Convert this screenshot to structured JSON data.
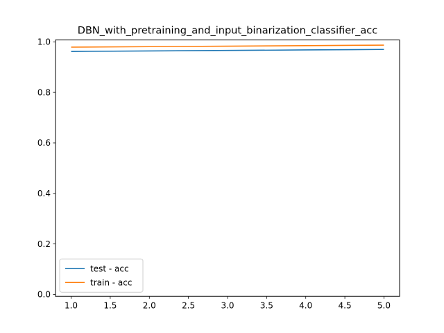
{
  "chart_data": {
    "type": "line",
    "title": "DBN_with_pretraining_and_input_binarization_classifier_acc",
    "xlabel": "",
    "ylabel": "",
    "xlim": [
      0.8,
      5.2
    ],
    "ylim": [
      -0.0075,
      1.0075
    ],
    "xticks": [
      1.0,
      1.5,
      2.0,
      2.5,
      3.0,
      3.5,
      4.0,
      4.5,
      5.0
    ],
    "xtick_labels": [
      "1.0",
      "1.5",
      "2.0",
      "2.5",
      "3.0",
      "3.5",
      "4.0",
      "4.5",
      "5.0"
    ],
    "yticks": [
      0.0,
      0.2,
      0.4,
      0.6,
      0.8,
      1.0
    ],
    "ytick_labels": [
      "0.0",
      "0.2",
      "0.4",
      "0.6",
      "0.8",
      "1.0"
    ],
    "grid": false,
    "legend_position": "lower-left",
    "series": [
      {
        "name": "test - acc",
        "color": "#1f77b4",
        "x": [
          1,
          2,
          3,
          4,
          5
        ],
        "y": [
          0.962,
          0.964,
          0.966,
          0.968,
          0.97
        ]
      },
      {
        "name": "train - acc",
        "color": "#ff7f0e",
        "x": [
          1,
          2,
          3,
          4,
          5
        ],
        "y": [
          0.979,
          0.981,
          0.983,
          0.985,
          0.987
        ]
      }
    ]
  }
}
